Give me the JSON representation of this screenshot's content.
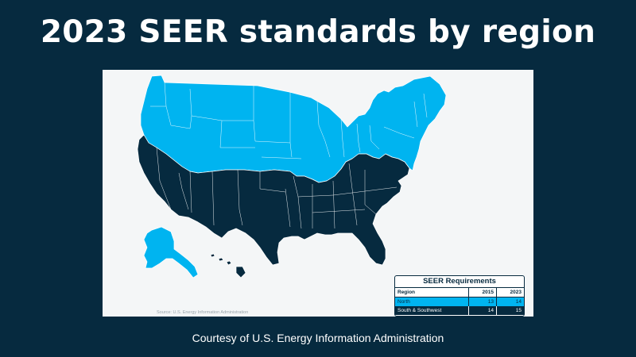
{
  "title": "2023 SEER standards by region",
  "source_note": "Source: U.S. Energy Information Administration",
  "courtesy": "Courtesy of U.S. Energy Information Administration",
  "colors": {
    "north": "#00b4f0",
    "south": "#062a3f",
    "background": "#062a3f"
  },
  "legend": {
    "title": "SEER Requirements",
    "headers": [
      "Region",
      "2015",
      "2023"
    ],
    "rows": [
      {
        "region": "North",
        "y2015": "13",
        "y2023": "14"
      },
      {
        "region": "South & Southwest",
        "y2015": "14",
        "y2023": "15"
      }
    ]
  }
}
